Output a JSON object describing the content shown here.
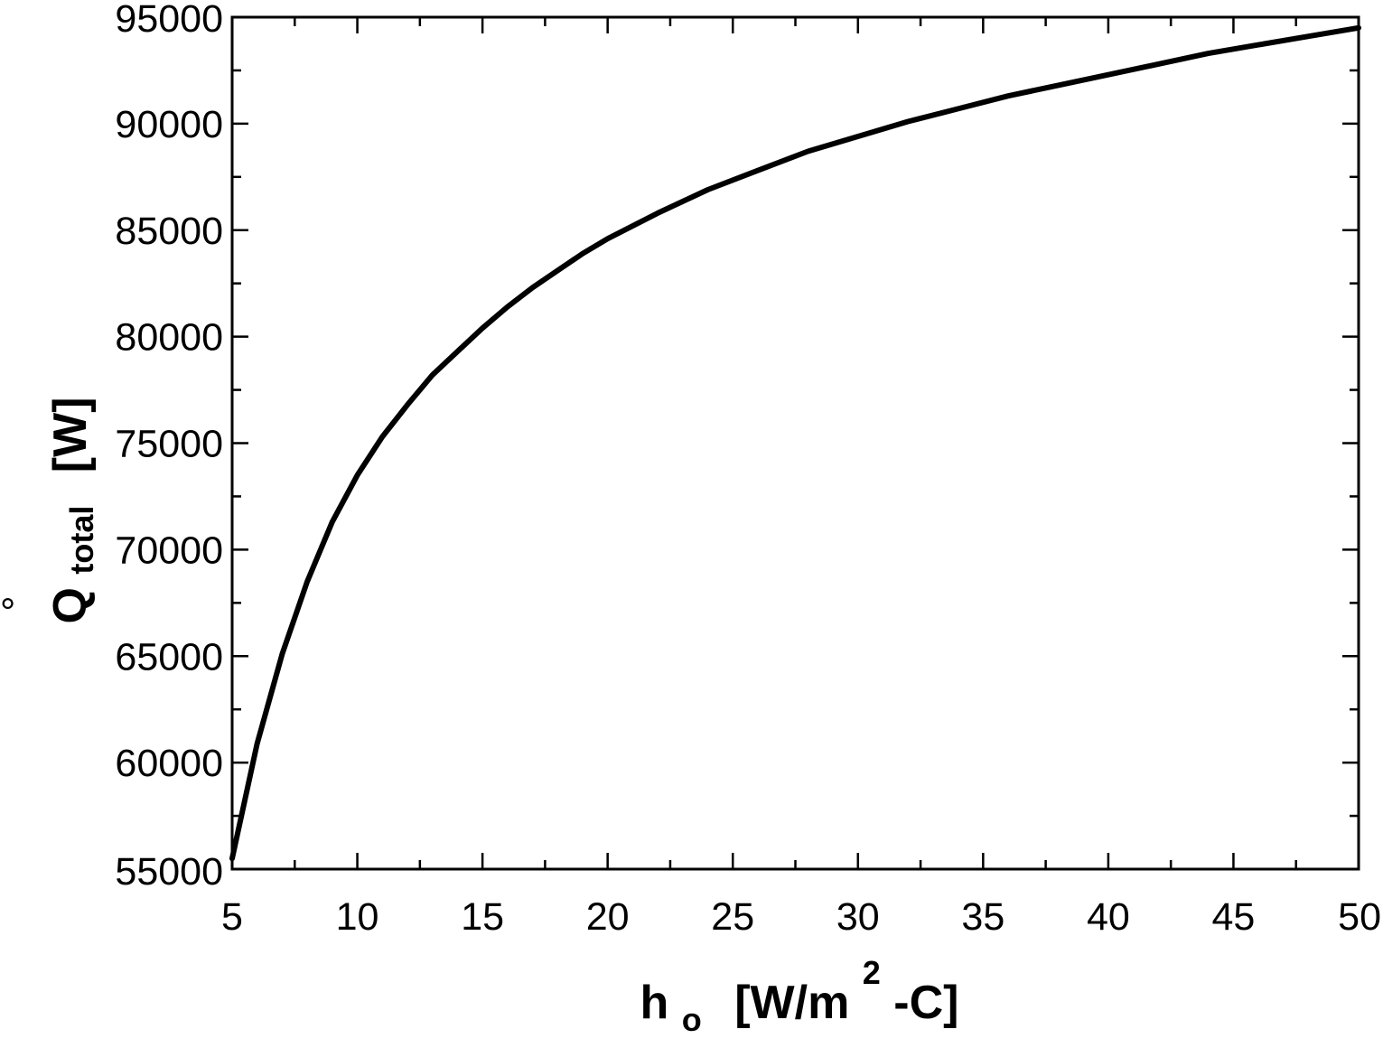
{
  "chart_data": {
    "type": "line",
    "xlabel": {
      "main": "h",
      "sub": "o",
      "unit_pre": "[W/m",
      "sup": "2",
      "unit_post": "-C]"
    },
    "ylabel": {
      "main": "Q",
      "sub": "total",
      "unit": "[W]",
      "dot": "°"
    },
    "xlim": [
      5,
      50
    ],
    "ylim": [
      55000,
      95000
    ],
    "xticks": [
      "5",
      "10",
      "15",
      "20",
      "25",
      "30",
      "35",
      "40",
      "45",
      "50"
    ],
    "yticks": [
      "55000",
      "60000",
      "65000",
      "70000",
      "75000",
      "80000",
      "85000",
      "90000",
      "95000"
    ],
    "grid": false,
    "series": [
      {
        "color": "#000000",
        "x": [
          5,
          6,
          7,
          8,
          9,
          10,
          11,
          12,
          13,
          14,
          15,
          16,
          17,
          18,
          19,
          20,
          22,
          24,
          26,
          28,
          30,
          32,
          34,
          36,
          38,
          40,
          42,
          44,
          46,
          48,
          50
        ],
        "y": [
          55500,
          60900,
          65100,
          68500,
          71300,
          73500,
          75300,
          76800,
          78200,
          79300,
          80400,
          81400,
          82300,
          83100,
          83900,
          84600,
          85800,
          86900,
          87800,
          88700,
          89400,
          90100,
          90700,
          91300,
          91800,
          92300,
          92800,
          93300,
          93700,
          94100,
          94500
        ]
      }
    ]
  }
}
